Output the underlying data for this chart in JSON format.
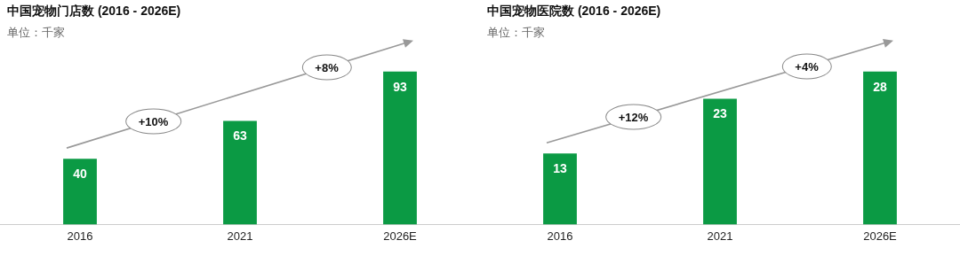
{
  "chart_data": [
    {
      "type": "bar",
      "title": "中国宠物门店数 (2016 - 2026E)",
      "subtitle": "单位：千家",
      "categories": [
        "2016",
        "2021",
        "2026E"
      ],
      "values": [
        40,
        63,
        93
      ],
      "color": "#0b9a44",
      "data_labels": true,
      "grid": false,
      "legend": false,
      "tick_labels": "x",
      "annotations": [
        "+10%",
        "+8%"
      ]
    },
    {
      "type": "bar",
      "title": "中国宠物医院数 (2016 - 2026E)",
      "subtitle": "单位：千家",
      "categories": [
        "2016",
        "2021",
        "2026E"
      ],
      "values": [
        13,
        23,
        28
      ],
      "color": "#0b9a44",
      "data_labels": true,
      "grid": false,
      "legend": false,
      "tick_labels": "x",
      "annotations": [
        "+12%",
        "+4%"
      ]
    }
  ]
}
